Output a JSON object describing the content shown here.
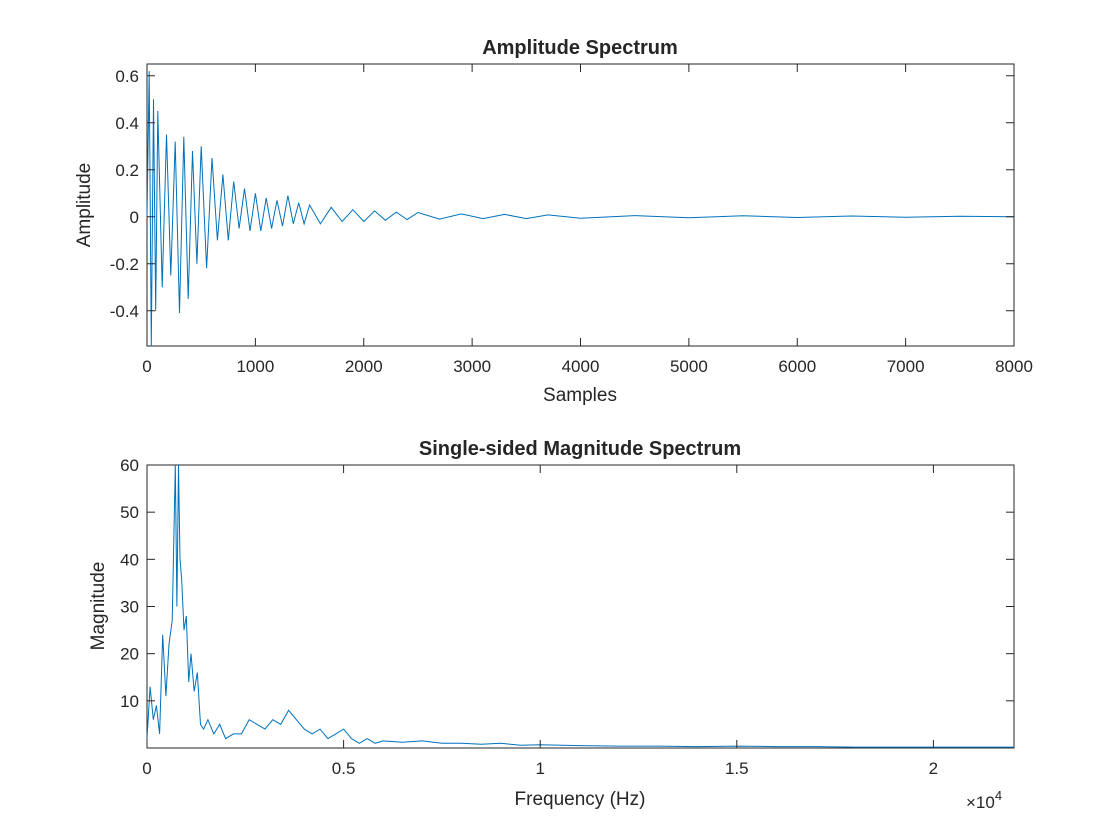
{
  "colors": {
    "series": "#0072BD",
    "axes": "#262626",
    "background": "#ffffff"
  },
  "chart_data": [
    {
      "type": "line",
      "title": "Amplitude Spectrum",
      "xlabel": "Samples",
      "ylabel": "Amplitude",
      "xlim": [
        0,
        8000
      ],
      "ylim": [
        -0.55,
        0.65
      ],
      "xticks": [
        0,
        1000,
        2000,
        3000,
        4000,
        5000,
        6000,
        7000,
        8000
      ],
      "xtick_labels": [
        "0",
        "1000",
        "2000",
        "3000",
        "4000",
        "5000",
        "6000",
        "7000",
        "8000"
      ],
      "yticks": [
        -0.4,
        -0.2,
        0,
        0.2,
        0.4,
        0.6
      ],
      "ytick_labels": [
        "-0.4",
        "-0.2",
        "0",
        "0.2",
        "0.4",
        "0.6"
      ],
      "grid": false,
      "series": [
        {
          "x": [
            0,
            20,
            40,
            60,
            80,
            100,
            140,
            180,
            220,
            260,
            300,
            340,
            380,
            420,
            460,
            500,
            550,
            600,
            650,
            700,
            750,
            800,
            850,
            900,
            950,
            1000,
            1050,
            1100,
            1150,
            1200,
            1250,
            1300,
            1350,
            1400,
            1450,
            1500,
            1600,
            1700,
            1800,
            1900,
            2000,
            2100,
            2200,
            2300,
            2400,
            2500,
            2700,
            2900,
            3100,
            3300,
            3500,
            3700,
            4000,
            4500,
            5000,
            5500,
            6000,
            6500,
            7000,
            7500,
            8000
          ],
          "y": [
            0.0,
            0.62,
            -0.55,
            0.5,
            -0.4,
            0.45,
            -0.3,
            0.35,
            -0.25,
            0.32,
            -0.41,
            0.34,
            -0.35,
            0.28,
            -0.2,
            0.3,
            -0.22,
            0.25,
            -0.1,
            0.18,
            -0.1,
            0.15,
            -0.05,
            0.12,
            -0.06,
            0.1,
            -0.06,
            0.08,
            -0.05,
            0.07,
            -0.04,
            0.09,
            -0.03,
            0.06,
            -0.03,
            0.05,
            -0.03,
            0.04,
            -0.02,
            0.03,
            -0.02,
            0.025,
            -0.015,
            0.02,
            -0.012,
            0.018,
            -0.01,
            0.012,
            -0.008,
            0.01,
            -0.008,
            0.008,
            -0.006,
            0.005,
            -0.004,
            0.004,
            -0.003,
            0.003,
            -0.002,
            0.002,
            0.0
          ]
        }
      ]
    },
    {
      "type": "line",
      "title": "Single-sided Magnitude Spectrum",
      "xlabel": "Frequency (Hz)",
      "ylabel": "Magnitude",
      "xlim": [
        0,
        22050
      ],
      "ylim": [
        0,
        60
      ],
      "xticks": [
        0,
        5000,
        10000,
        15000,
        20000
      ],
      "xtick_labels": [
        "0",
        "0.5",
        "1",
        "1.5",
        "2"
      ],
      "x_exponent_label": "×10",
      "x_exponent": "4",
      "yticks": [
        10,
        20,
        30,
        40,
        50,
        60
      ],
      "ytick_labels": [
        "10",
        "20",
        "30",
        "40",
        "50",
        "60"
      ],
      "grid": false,
      "series": [
        {
          "x": [
            0,
            80,
            160,
            240,
            320,
            400,
            480,
            560,
            640,
            720,
            760,
            800,
            840,
            880,
            940,
            1000,
            1060,
            1120,
            1200,
            1280,
            1360,
            1440,
            1550,
            1700,
            1850,
            2000,
            2200,
            2400,
            2600,
            2800,
            3000,
            3200,
            3400,
            3600,
            3800,
            4000,
            4200,
            4400,
            4600,
            4800,
            5000,
            5200,
            5400,
            5600,
            5800,
            6000,
            6500,
            7000,
            7500,
            8000,
            8500,
            9000,
            9500,
            10000,
            11000,
            12000,
            13000,
            14000,
            15000,
            16000,
            17000,
            18000,
            19000,
            20000,
            21000,
            22050
          ],
          "y": [
            2,
            13,
            6,
            9,
            3,
            24,
            11,
            22,
            27,
            62,
            30,
            75,
            40,
            36,
            25,
            28,
            14,
            20,
            12,
            16,
            5,
            4,
            6,
            3,
            5,
            2,
            3,
            3,
            6,
            5,
            4,
            6,
            5,
            8,
            6,
            4,
            3,
            4,
            2,
            3,
            4,
            2,
            1,
            2,
            1,
            1.5,
            1.2,
            1.5,
            1,
            1,
            0.8,
            1,
            0.6,
            0.7,
            0.5,
            0.4,
            0.4,
            0.3,
            0.4,
            0.3,
            0.3,
            0.2,
            0.2,
            0.2,
            0.2,
            0.2
          ]
        }
      ]
    }
  ]
}
